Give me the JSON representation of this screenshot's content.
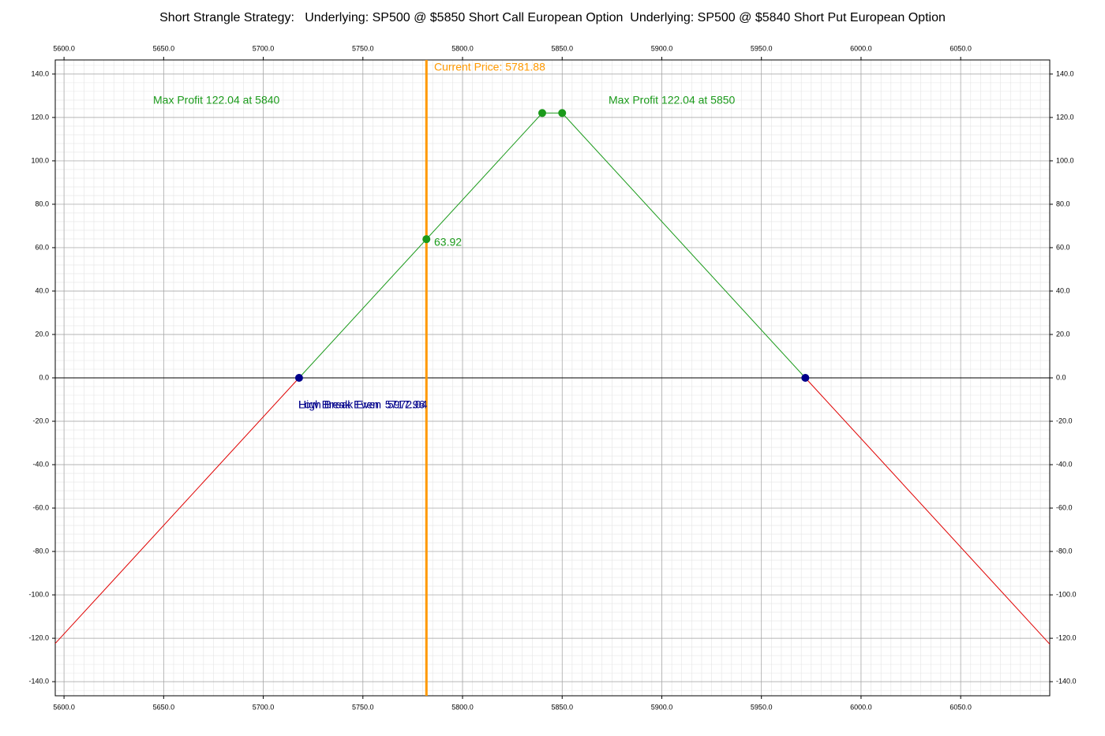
{
  "chart_data": {
    "type": "line",
    "title": "Short Strangle Strategy:   Underlying: SP500 @ $5850 Short Call European Option  Underlying: SP500 @ $5840 Short Put European Option",
    "xlim": [
      5595.6,
      6094.7
    ],
    "ylim": [
      -146.5,
      146.5
    ],
    "xticks": [
      {
        "value": 5600,
        "label": "5600.0"
      },
      {
        "value": 5650,
        "label": "5650.0"
      },
      {
        "value": 5700,
        "label": "5700.0"
      },
      {
        "value": 5750,
        "label": "5750.0"
      },
      {
        "value": 5800,
        "label": "5800.0"
      },
      {
        "value": 5850,
        "label": "5850.0"
      },
      {
        "value": 5900,
        "label": "5900.0"
      },
      {
        "value": 5950,
        "label": "5950.0"
      },
      {
        "value": 6000,
        "label": "6000.0"
      },
      {
        "value": 6050,
        "label": "6050.0"
      }
    ],
    "yticks": [
      {
        "value": -140,
        "label": "-140.0"
      },
      {
        "value": -120,
        "label": "-120.0"
      },
      {
        "value": -100,
        "label": "-100.0"
      },
      {
        "value": -80,
        "label": "-80.0"
      },
      {
        "value": -60,
        "label": "-60.0"
      },
      {
        "value": -40,
        "label": "-40.0"
      },
      {
        "value": -20,
        "label": "-20.0"
      },
      {
        "value": 0,
        "label": "0.0"
      },
      {
        "value": 20,
        "label": "20.0"
      },
      {
        "value": 40,
        "label": "40.0"
      },
      {
        "value": 60,
        "label": "60.0"
      },
      {
        "value": 80,
        "label": "80.0"
      },
      {
        "value": 100,
        "label": "100.0"
      },
      {
        "value": 120,
        "label": "120.0"
      },
      {
        "value": 140,
        "label": "140.0"
      }
    ],
    "grid": true,
    "minor_grid": true,
    "series": [
      {
        "color": "#e00000",
        "x": [
          5595.6,
          5717.96
        ],
        "values": [
          -122.4,
          0
        ]
      },
      {
        "color": "#1a9a1a",
        "x": [
          5717.96,
          5840,
          5850,
          5972.04
        ],
        "values": [
          0,
          122.04,
          122.04,
          0
        ]
      },
      {
        "color": "#e00000",
        "x": [
          5972.04,
          6094.7
        ],
        "values": [
          0,
          -122.7
        ]
      }
    ],
    "hlines": [
      {
        "y": 0,
        "color": "#000000"
      }
    ],
    "vlines": [
      {
        "x": 5781.88,
        "color": "#ff9900"
      }
    ],
    "markers": [
      {
        "x": 5840,
        "y": 122.04,
        "color": "#1a9a1a"
      },
      {
        "x": 5850,
        "y": 122.04,
        "color": "#1a9a1a"
      },
      {
        "x": 5781.88,
        "y": 63.92,
        "color": "#1a9a1a"
      },
      {
        "x": 5717.96,
        "y": 0,
        "color": "#00008b"
      },
      {
        "x": 5972.04,
        "y": 0,
        "color": "#00008b"
      }
    ],
    "annotations": [
      {
        "text": "Max Profit 122.04 at 5840",
        "color": "#1a9a1a"
      },
      {
        "text": "Max Profit 122.04 at 5850",
        "color": "#1a9a1a"
      },
      {
        "text": "63.92",
        "color": "#1a9a1a"
      },
      {
        "text": "Low Break Even  5717.96",
        "color": "#00008b"
      },
      {
        "text": "High Break Even  5972.04",
        "color": "#00008b"
      },
      {
        "text": "Current Price: 5781.88",
        "color": "#ff9900"
      }
    ]
  }
}
